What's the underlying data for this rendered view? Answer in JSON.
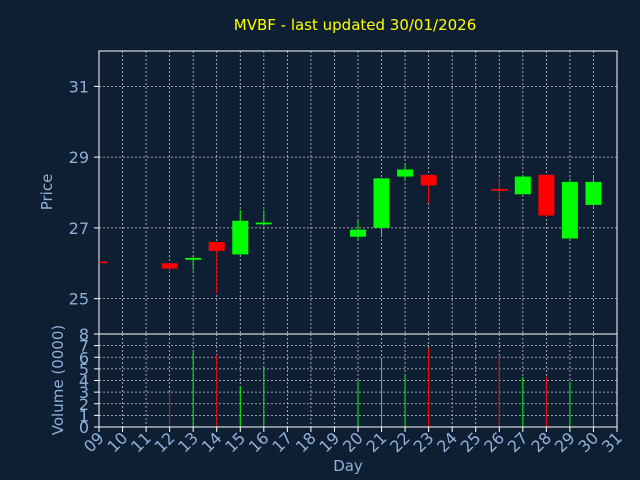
{
  "title": "MVBF - last updated 30/01/2026",
  "colors": {
    "background": "#0f1f33",
    "plot_background": "#0f1f33",
    "axis": "#ffffff",
    "grid": "#c8c8c8",
    "title": "#ffff00",
    "tick_label": "#8fb0d8",
    "axis_label": "#8fb0d8",
    "up": "#00ff00",
    "down": "#ff0000"
  },
  "chart_data": [
    {
      "type": "candlestick",
      "ylabel": "Price",
      "ylim": [
        24,
        32
      ],
      "yticks": [
        25,
        27,
        29,
        31
      ],
      "grid": true,
      "candles": [
        {
          "day": 9,
          "open": 26.05,
          "high": 26.05,
          "low": 26.05,
          "close": 26.0
        },
        {
          "day": 12,
          "open": 26.0,
          "high": 26.0,
          "low": 25.75,
          "close": 25.85
        },
        {
          "day": 13,
          "open": 26.1,
          "high": 26.2,
          "low": 25.8,
          "close": 26.15
        },
        {
          "day": 14,
          "open": 26.6,
          "high": 26.6,
          "low": 25.15,
          "close": 26.35
        },
        {
          "day": 15,
          "open": 26.25,
          "high": 27.5,
          "low": 26.25,
          "close": 27.2
        },
        {
          "day": 16,
          "open": 27.1,
          "high": 27.5,
          "low": 27.05,
          "close": 27.15
        },
        {
          "day": 20,
          "open": 26.75,
          "high": 27.2,
          "low": 26.65,
          "close": 26.95
        },
        {
          "day": 21,
          "open": 27.0,
          "high": 28.4,
          "low": 26.8,
          "close": 28.4
        },
        {
          "day": 22,
          "open": 28.45,
          "high": 28.8,
          "low": 28.35,
          "close": 28.65
        },
        {
          "day": 23,
          "open": 28.5,
          "high": 28.5,
          "low": 27.7,
          "close": 28.2
        },
        {
          "day": 26,
          "open": 28.1,
          "high": 28.4,
          "low": 27.8,
          "close": 28.05
        },
        {
          "day": 27,
          "open": 27.95,
          "high": 28.5,
          "low": 27.95,
          "close": 28.45
        },
        {
          "day": 28,
          "open": 28.5,
          "high": 28.5,
          "low": 27.3,
          "close": 27.35
        },
        {
          "day": 29,
          "open": 26.7,
          "high": 28.4,
          "low": 26.7,
          "close": 28.3
        },
        {
          "day": 30,
          "open": 27.65,
          "high": 28.5,
          "low": 27.6,
          "close": 28.3
        }
      ]
    },
    {
      "type": "bar",
      "ylabel": "Volume (0000)",
      "ylim": [
        0,
        8
      ],
      "yticks": [
        0,
        1,
        2,
        3,
        4,
        5,
        6,
        7,
        8
      ],
      "xlabel": "Day",
      "grid": true,
      "bars": [
        {
          "day": 9,
          "value": 0,
          "dir": "down"
        },
        {
          "day": 12,
          "value": 3.0,
          "dir": "down"
        },
        {
          "day": 13,
          "value": 6.5,
          "dir": "up"
        },
        {
          "day": 14,
          "value": 6.2,
          "dir": "down"
        },
        {
          "day": 15,
          "value": 3.5,
          "dir": "up"
        },
        {
          "day": 16,
          "value": 5.2,
          "dir": "up"
        },
        {
          "day": 20,
          "value": 4.0,
          "dir": "up"
        },
        {
          "day": 21,
          "value": 5.8,
          "dir": "up"
        },
        {
          "day": 22,
          "value": 4.5,
          "dir": "up"
        },
        {
          "day": 23,
          "value": 6.8,
          "dir": "down"
        },
        {
          "day": 26,
          "value": 6.0,
          "dir": "down"
        },
        {
          "day": 27,
          "value": 4.3,
          "dir": "up"
        },
        {
          "day": 28,
          "value": 4.3,
          "dir": "down"
        },
        {
          "day": 29,
          "value": 3.9,
          "dir": "up"
        },
        {
          "day": 30,
          "value": 7.5,
          "dir": "up"
        }
      ]
    }
  ],
  "x_axis": {
    "min": 9,
    "max": 31,
    "tick_labels": [
      "09",
      "10",
      "11",
      "12",
      "13",
      "14",
      "15",
      "16",
      "17",
      "18",
      "19",
      "20",
      "21",
      "22",
      "23",
      "24",
      "25",
      "26",
      "27",
      "28",
      "29",
      "30",
      "31"
    ]
  }
}
